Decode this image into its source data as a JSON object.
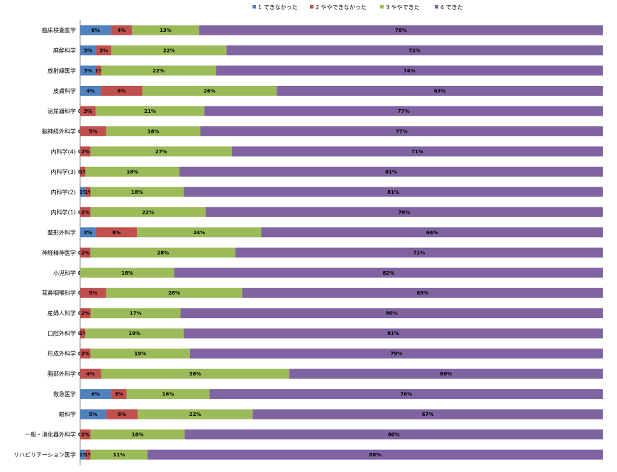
{
  "chart_data": {
    "type": "bar",
    "orientation": "horizontal",
    "stacked": "percent",
    "legend_position": "top",
    "grid": false,
    "categories": [
      "臨床検査医学",
      "麻酔科学",
      "放射線医学",
      "皮膚科学",
      "泌尿器科学",
      "脳神経外科学",
      "内科学(4)",
      "内科学(3)",
      "内科学(2)",
      "内科学(1)",
      "整形外科学",
      "神経精神医学",
      "小児科学",
      "耳鼻咽喉科学",
      "産婦人科学",
      "口腔外科学",
      "形成外科学",
      "胸部外科学",
      "救急医学",
      "眼科学",
      "一般・消化器外科学",
      "リハビリテーション医学"
    ],
    "series": [
      {
        "name": "1 できなかった",
        "color": "#4f81bd",
        "values": [
          6,
          3,
          3,
          4,
          0,
          0,
          0,
          0,
          1,
          0,
          3,
          0,
          0,
          0,
          0,
          0,
          0,
          0,
          6,
          5,
          0,
          1
        ],
        "labels": [
          "6%",
          "3%",
          "3%",
          "4%",
          "0%",
          "0%",
          "0%",
          "0%",
          "1%",
          "0%",
          "3%",
          "0%",
          "0%",
          "0%",
          "0%",
          "0%",
          "0%",
          "0%",
          "6%",
          "5%",
          "0%",
          "1%"
        ]
      },
      {
        "name": "2 ややできなかった",
        "color": "#c0504d",
        "values": [
          4,
          3,
          1,
          8,
          3,
          5,
          2,
          1,
          1,
          2,
          8,
          2,
          0,
          5,
          2,
          1,
          2,
          4,
          3,
          6,
          2,
          1
        ],
        "labels": [
          "4%",
          "3%",
          "1%",
          "8%",
          "3%",
          "5%",
          "2%",
          "1%",
          "1%",
          "2%",
          "8%",
          "2%",
          "0%",
          "5%",
          "2%",
          "1%",
          "2%",
          "4%",
          "3%",
          "6%",
          "2%",
          "1%"
        ]
      },
      {
        "name": "3 ややできた",
        "color": "#9bbb59",
        "values": [
          13,
          22,
          22,
          26,
          21,
          18,
          27,
          18,
          18,
          22,
          24,
          28,
          18,
          26,
          17,
          19,
          19,
          36,
          16,
          22,
          18,
          11
        ],
        "labels": [
          "13%",
          "22%",
          "22%",
          "26%",
          "21%",
          "18%",
          "27%",
          "18%",
          "18%",
          "22%",
          "24%",
          "28%",
          "18%",
          "26%",
          "17%",
          "19%",
          "19%",
          "36%",
          "16%",
          "22%",
          "18%",
          "11%"
        ]
      },
      {
        "name": "4 できた",
        "color": "#8064a2",
        "values": [
          78,
          72,
          74,
          63,
          77,
          77,
          71,
          81,
          81,
          76,
          66,
          71,
          82,
          69,
          80,
          81,
          79,
          60,
          76,
          67,
          80,
          88
        ],
        "labels": [
          "78%",
          "72%",
          "74%",
          "63%",
          "77%",
          "77%",
          "71%",
          "81%",
          "81%",
          "76%",
          "66%",
          "71%",
          "82%",
          "69%",
          "80%",
          "81%",
          "79%",
          "60%",
          "76%",
          "67%",
          "80%",
          "88%"
        ]
      }
    ]
  }
}
